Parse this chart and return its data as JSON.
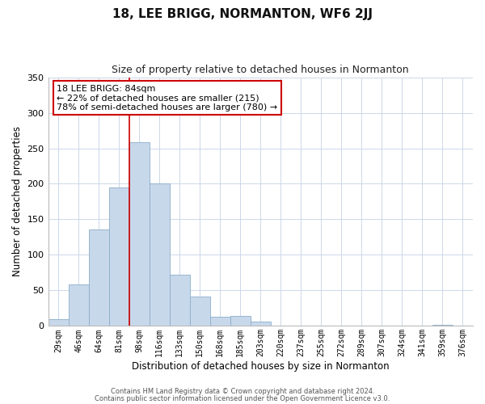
{
  "title": "18, LEE BRIGG, NORMANTON, WF6 2JJ",
  "subtitle": "Size of property relative to detached houses in Normanton",
  "xlabel": "Distribution of detached houses by size in Normanton",
  "ylabel": "Number of detached properties",
  "bar_labels": [
    "29sqm",
    "46sqm",
    "64sqm",
    "81sqm",
    "98sqm",
    "116sqm",
    "133sqm",
    "150sqm",
    "168sqm",
    "185sqm",
    "203sqm",
    "220sqm",
    "237sqm",
    "255sqm",
    "272sqm",
    "289sqm",
    "307sqm",
    "324sqm",
    "341sqm",
    "359sqm",
    "376sqm"
  ],
  "bar_values": [
    10,
    58,
    136,
    195,
    258,
    200,
    72,
    41,
    13,
    14,
    6,
    0,
    0,
    0,
    0,
    0,
    0,
    0,
    0,
    2,
    0
  ],
  "bar_color": "#c8d8eb",
  "bar_edge_color": "#8aaec8",
  "vline_pos": 3.5,
  "vline_color": "#cc0000",
  "ylim": [
    0,
    350
  ],
  "yticks": [
    0,
    50,
    100,
    150,
    200,
    250,
    300,
    350
  ],
  "annotation_text": "18 LEE BRIGG: 84sqm\n← 22% of detached houses are smaller (215)\n78% of semi-detached houses are larger (780) →",
  "annotation_box_color": "#ffffff",
  "annotation_box_edge": "#cc0000",
  "footer_line1": "Contains HM Land Registry data © Crown copyright and database right 2024.",
  "footer_line2": "Contains public sector information licensed under the Open Government Licence v3.0.",
  "background_color": "#ffffff",
  "grid_color": "#ccd8e8"
}
